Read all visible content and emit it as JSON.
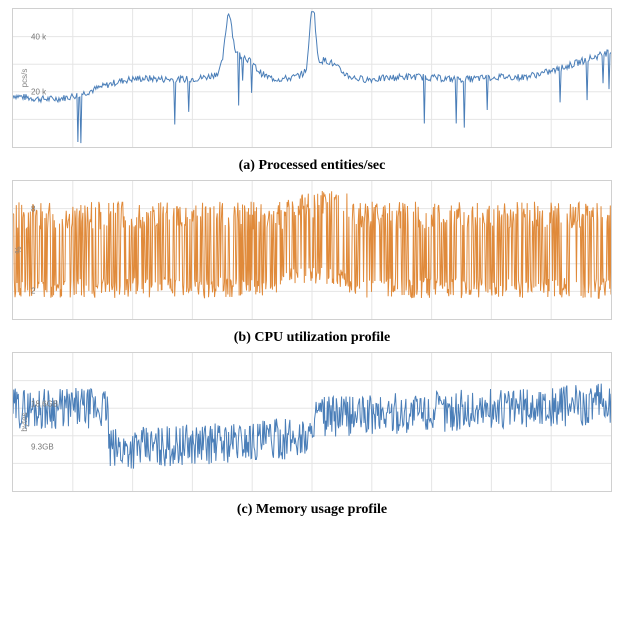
{
  "charts": [
    {
      "id": "entities",
      "type": "line",
      "caption": "(a) Processed entities/sec",
      "ylabel": "pcs/s",
      "series_color": "#4a7eb8",
      "background_color": "#ffffff",
      "grid_color": "#e5e5e5",
      "line_width": 1,
      "title_fontsize": 14,
      "label_fontsize": 8,
      "n_points": 600,
      "ylim": [
        0,
        50000
      ],
      "yticks": [
        {
          "pos": 0.6,
          "label": "20 k"
        },
        {
          "pos": 0.2,
          "label": "40 k"
        }
      ],
      "vgrid_count": 10,
      "hgrid": [
        0.2,
        0.4,
        0.6,
        0.8
      ],
      "pattern": "entities"
    },
    {
      "id": "cpu",
      "type": "line",
      "caption": "(b) CPU utilization profile",
      "ylabel": "%",
      "series_color": "#e08a3a",
      "background_color": "#ffffff",
      "grid_color": "#e5e5e5",
      "line_width": 1,
      "title_fontsize": 14,
      "label_fontsize": 8,
      "n_points": 900,
      "ylim": [
        0,
        10
      ],
      "yticks": [
        {
          "pos": 0.8,
          "label": "2"
        },
        {
          "pos": 0.2,
          "label": "8"
        }
      ],
      "vgrid_count": 10,
      "hgrid": [
        0.2,
        0.4,
        0.6,
        0.8
      ],
      "pattern": "cpu"
    },
    {
      "id": "memory",
      "type": "line",
      "caption": "(c) Memory usage profile",
      "ylabel": "bytes",
      "series_color": "#4a7eb8",
      "background_color": "#ffffff",
      "grid_color": "#e5e5e5",
      "line_width": 1,
      "title_fontsize": 14,
      "label_fontsize": 8,
      "n_points": 800,
      "ylim": [
        0,
        30
      ],
      "yticks": [
        {
          "pos": 0.68,
          "label": "9.3GB"
        },
        {
          "pos": 0.37,
          "label": "18.6GB"
        }
      ],
      "vgrid_count": 10,
      "hgrid": [
        0.2,
        0.4,
        0.6,
        0.8
      ],
      "pattern": "memory"
    }
  ]
}
